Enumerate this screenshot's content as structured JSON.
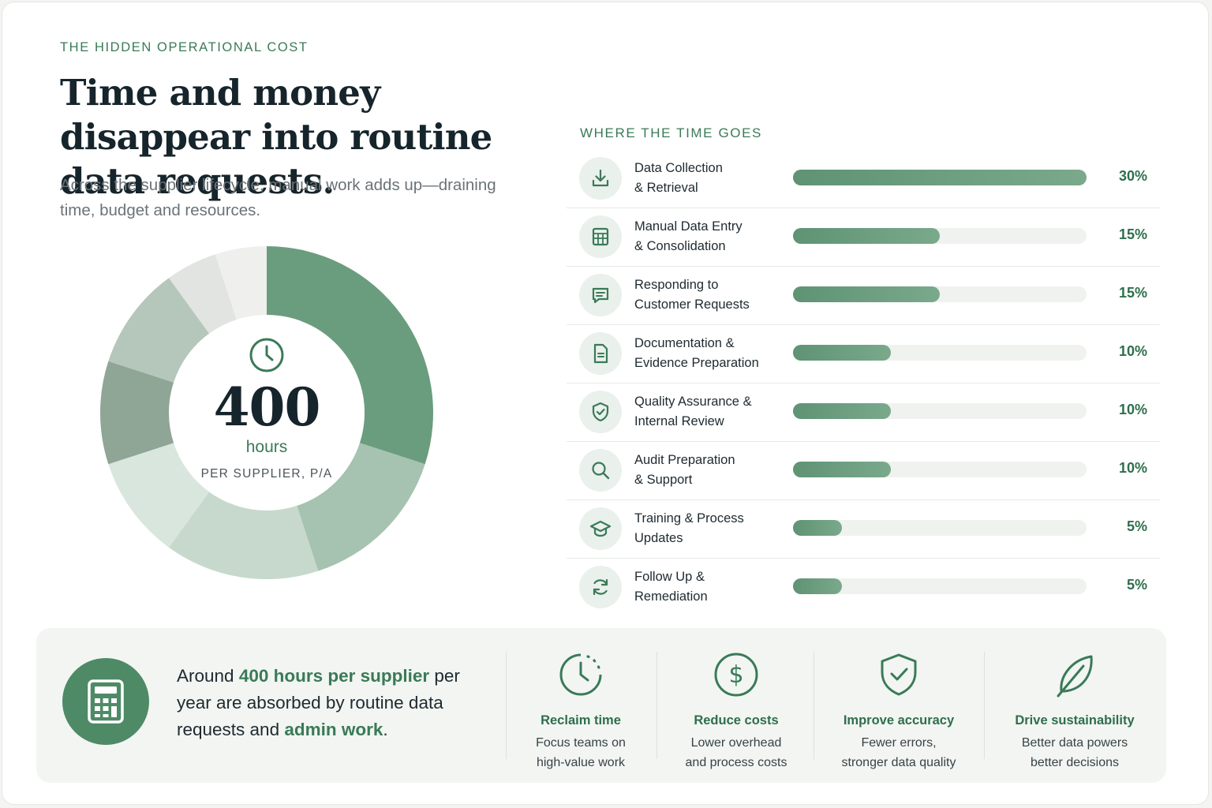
{
  "header": {
    "eyebrow": "THE HIDDEN OPERATIONAL COST",
    "headline": "Time and money disappear into routine data requests.",
    "subtitle": "Across the supplier lifecycle, manual work adds up—draining time, budget and resources."
  },
  "donut": {
    "value": "400",
    "unit": "hours",
    "caption": "PER SUPPLIER, P/A",
    "icon": "clock-icon"
  },
  "breakdown": {
    "title": "WHERE THE TIME GOES"
  },
  "chart_data": {
    "type": "bar",
    "orientation": "horizontal",
    "title": "WHERE THE TIME GOES",
    "categories": [
      [
        "Data Collection",
        "& Retrieval"
      ],
      [
        "Manual Data Entry",
        "& Consolidation"
      ],
      [
        "Responding to",
        "Customer Requests"
      ],
      [
        "Documentation &",
        "Evidence Preparation"
      ],
      [
        "Quality Assurance &",
        "Internal Review"
      ],
      [
        "Audit Preparation",
        "& Support"
      ],
      [
        "Training & Process",
        "Updates"
      ],
      [
        "Follow Up &",
        "Remediation"
      ]
    ],
    "values": [
      30,
      15,
      15,
      10,
      10,
      10,
      5,
      5
    ],
    "labels": [
      "30%",
      "15%",
      "15%",
      "10%",
      "10%",
      "10%",
      "5%",
      "5%"
    ],
    "icons": [
      "download-icon",
      "spreadsheet-icon",
      "chat-icon",
      "document-icon",
      "shield-check-icon",
      "search-icon",
      "graduation-cap-icon",
      "refresh-icon"
    ],
    "ylim": [
      0,
      30
    ],
    "donut_colors": [
      "#6a9d7e",
      "#a6c2b0",
      "#c6d9cc",
      "#d9e6dd",
      "#8fa596",
      "#b5c7ba",
      "#e2e4e1",
      "#efefee"
    ]
  },
  "summary": {
    "parts": [
      {
        "text": "Around ",
        "highlight": false
      },
      {
        "text": "400 hours per supplier",
        "highlight": true
      },
      {
        "text": " per year are absorbed by routine data requests and ",
        "highlight": false
      },
      {
        "text": "admin work",
        "highlight": true
      },
      {
        "text": ".",
        "highlight": false
      }
    ],
    "icon": "calculator-icon"
  },
  "benefits": [
    {
      "icon": "clock-icon",
      "title": "Reclaim time",
      "lines": [
        "Focus teams on",
        "high-value work"
      ]
    },
    {
      "icon": "dollar-icon",
      "title": "Reduce costs",
      "lines": [
        "Lower overhead",
        "and process costs"
      ]
    },
    {
      "icon": "shield-check-icon",
      "title": "Improve accuracy",
      "lines": [
        "Fewer errors,",
        "stronger data quality"
      ]
    },
    {
      "icon": "leaf-icon",
      "title": "Drive sustainability",
      "lines": [
        "Better data powers",
        "better decisions"
      ]
    }
  ],
  "colors": {
    "accent": "#3a7a57",
    "bar": "#6a9d7e",
    "track": "#f0f2ef",
    "calc_bg": "#4e8a66"
  }
}
